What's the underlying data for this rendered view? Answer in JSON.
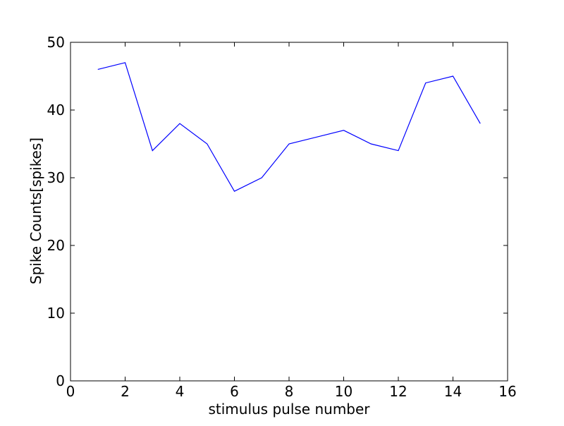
{
  "colors": {
    "background": "#ffffff",
    "axes": "#000000",
    "series_line": "#0000ff"
  },
  "chart_data": {
    "type": "line",
    "title": "",
    "xlabel": "stimulus pulse number",
    "ylabel": "Spike Counts[spikes]",
    "xlim": [
      0,
      16
    ],
    "ylim": [
      0,
      50
    ],
    "xticks": [
      0,
      2,
      4,
      6,
      8,
      10,
      12,
      14,
      16
    ],
    "yticks": [
      0,
      10,
      20,
      30,
      40,
      50
    ],
    "xtick_labels": [
      "0",
      "2",
      "4",
      "6",
      "8",
      "10",
      "12",
      "14",
      "16"
    ],
    "ytick_labels": [
      "0",
      "10",
      "20",
      "30",
      "40",
      "50"
    ],
    "grid": false,
    "legend": "none",
    "series": [
      {
        "color": "#0000ff",
        "x": [
          1,
          2,
          3,
          4,
          5,
          6,
          7,
          8,
          9,
          10,
          11,
          12,
          13,
          14,
          15
        ],
        "y": [
          46,
          47,
          34,
          38,
          35,
          28,
          30,
          35,
          36,
          37,
          35,
          34,
          44,
          45,
          38
        ]
      }
    ]
  }
}
